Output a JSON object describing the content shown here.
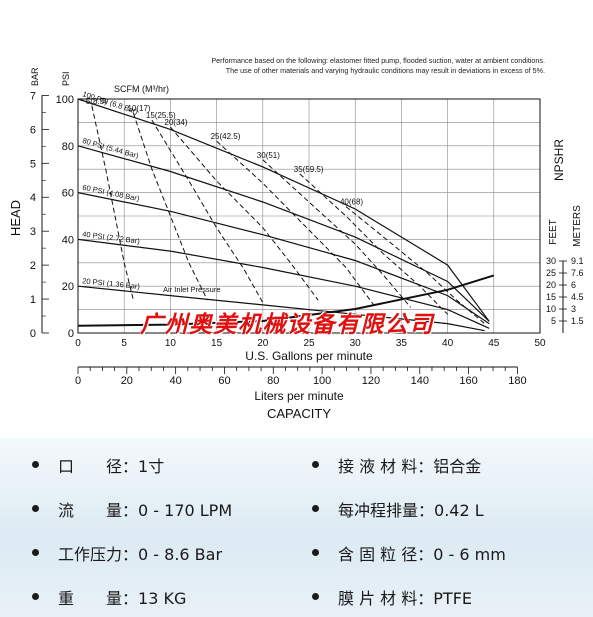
{
  "performance_note": {
    "line1": "Performance based on the following: elastomer fitted pump, flooded suction, water at ambient conditions.",
    "line2": "The use of other materials and varying hydraulic conditions may result in deviations in excess of 5%."
  },
  "watermark": "广州奥美机械设备有限公司",
  "chart_data": {
    "type": "line",
    "title": "",
    "xlabel": "U.S. Gallons per minute",
    "xlabel2": "Liters per minute",
    "capacity_label": "CAPACITY",
    "ylabel": "HEAD",
    "y_units": {
      "bar": "BAR",
      "psi": "PSI"
    },
    "scfm_label": "SCFM (M³/hr)",
    "npshr_label": "NPSHR",
    "npshr_units": {
      "feet": "FEET",
      "meters": "METERS"
    },
    "xlim": [
      0,
      50
    ],
    "ylim": [
      0,
      100
    ],
    "x_ticks": [
      "0",
      "5",
      "10",
      "15",
      "20",
      "25",
      "30",
      "35",
      "40",
      "45",
      "50"
    ],
    "x2_ticks": [
      "0",
      "20",
      "40",
      "60",
      "80",
      "100",
      "120",
      "140",
      "160",
      "180"
    ],
    "psi_ticks": [
      "0",
      "20",
      "40",
      "60",
      "80",
      "100"
    ],
    "bar_ticks": [
      "0",
      "1",
      "2",
      "3",
      "4",
      "5",
      "6",
      "7"
    ],
    "npshr_feet_ticks": [
      "5",
      "10",
      "15",
      "20",
      "25",
      "30"
    ],
    "npshr_meter_ticks": [
      "1.5",
      "3",
      "4.5",
      "6",
      "7.6",
      "9.1"
    ],
    "grid": true,
    "pressure_curves": [
      {
        "label": "100 PSI (6.8 Bar)",
        "x": [
          0,
          10,
          20,
          30,
          40,
          44.5
        ],
        "y": [
          100,
          87,
          71,
          53,
          29,
          5
        ]
      },
      {
        "label": "80 PSI (5.44 Bar)",
        "x": [
          0,
          10,
          20,
          30,
          40,
          44.5
        ],
        "y": [
          80,
          69,
          56,
          41,
          22,
          5
        ]
      },
      {
        "label": "60 PSI (4.08 Bar)",
        "x": [
          0,
          10,
          20,
          30,
          40,
          44.5
        ],
        "y": [
          60,
          52,
          42,
          31,
          16,
          4
        ]
      },
      {
        "label": "40 PSI (2.72 Bar)",
        "x": [
          0,
          10,
          20,
          30,
          40,
          44.5
        ],
        "y": [
          40,
          35,
          28,
          20,
          10,
          2
        ]
      },
      {
        "label": "20 PSI (1.36 Bar)",
        "x": [
          0,
          10,
          20,
          30,
          40,
          44
        ],
        "y": [
          20,
          16,
          12,
          8,
          4,
          1
        ]
      }
    ],
    "inlet_label": "Air Inlet Pressure",
    "air_curves": [
      {
        "label": "5(8.5)",
        "x": [
          1.5,
          3,
          4,
          5,
          6
        ],
        "y": [
          97,
          70,
          50,
          30,
          14
        ]
      },
      {
        "label": "10(17)",
        "x": [
          6,
          8,
          10,
          12,
          14
        ],
        "y": [
          94,
          70,
          50,
          30,
          14
        ]
      },
      {
        "label": "15(25.5)",
        "x": [
          8,
          12,
          15,
          18,
          20
        ],
        "y": [
          91,
          65,
          45,
          27,
          13
        ]
      },
      {
        "label": "20(34)",
        "x": [
          10,
          15,
          20,
          23,
          26
        ],
        "y": [
          88,
          65,
          45,
          30,
          14
        ]
      },
      {
        "label": "25(42.5)",
        "x": [
          15,
          20,
          25,
          29,
          32
        ],
        "y": [
          82,
          64,
          44,
          28,
          12
        ]
      },
      {
        "label": "30(51)",
        "x": [
          20,
          25,
          30,
          33,
          36
        ],
        "y": [
          74,
          56,
          38,
          25,
          11
        ]
      },
      {
        "label": "35(59.5)",
        "x": [
          24,
          29,
          33,
          37,
          40
        ],
        "y": [
          68,
          50,
          34,
          20,
          8
        ]
      },
      {
        "label": "40(68)",
        "x": [
          29,
          34,
          38,
          41,
          44
        ],
        "y": [
          54,
          38,
          25,
          14,
          4
        ]
      }
    ],
    "npshr_curve": {
      "x": [
        0,
        10,
        20,
        30,
        40,
        45
      ],
      "y": [
        3,
        3.5,
        5,
        10,
        18,
        24
      ]
    }
  },
  "specs": [
    {
      "label": "口　　径：",
      "value": "1寸"
    },
    {
      "label": "接 液 材 料：",
      "value": "铝合金"
    },
    {
      "label": "流　　量：",
      "value": "0 - 170 LPM"
    },
    {
      "label": "每冲程排量：",
      "value": "0.42 L"
    },
    {
      "label": "工作压力：",
      "value": "0 - 8.6 Bar"
    },
    {
      "label": "含 固 粒 径：",
      "value": "0 - 6 mm"
    },
    {
      "label": "重　　量：",
      "value": "13 KG"
    },
    {
      "label": "膜 片 材 料：",
      "value": "PTFE"
    }
  ]
}
